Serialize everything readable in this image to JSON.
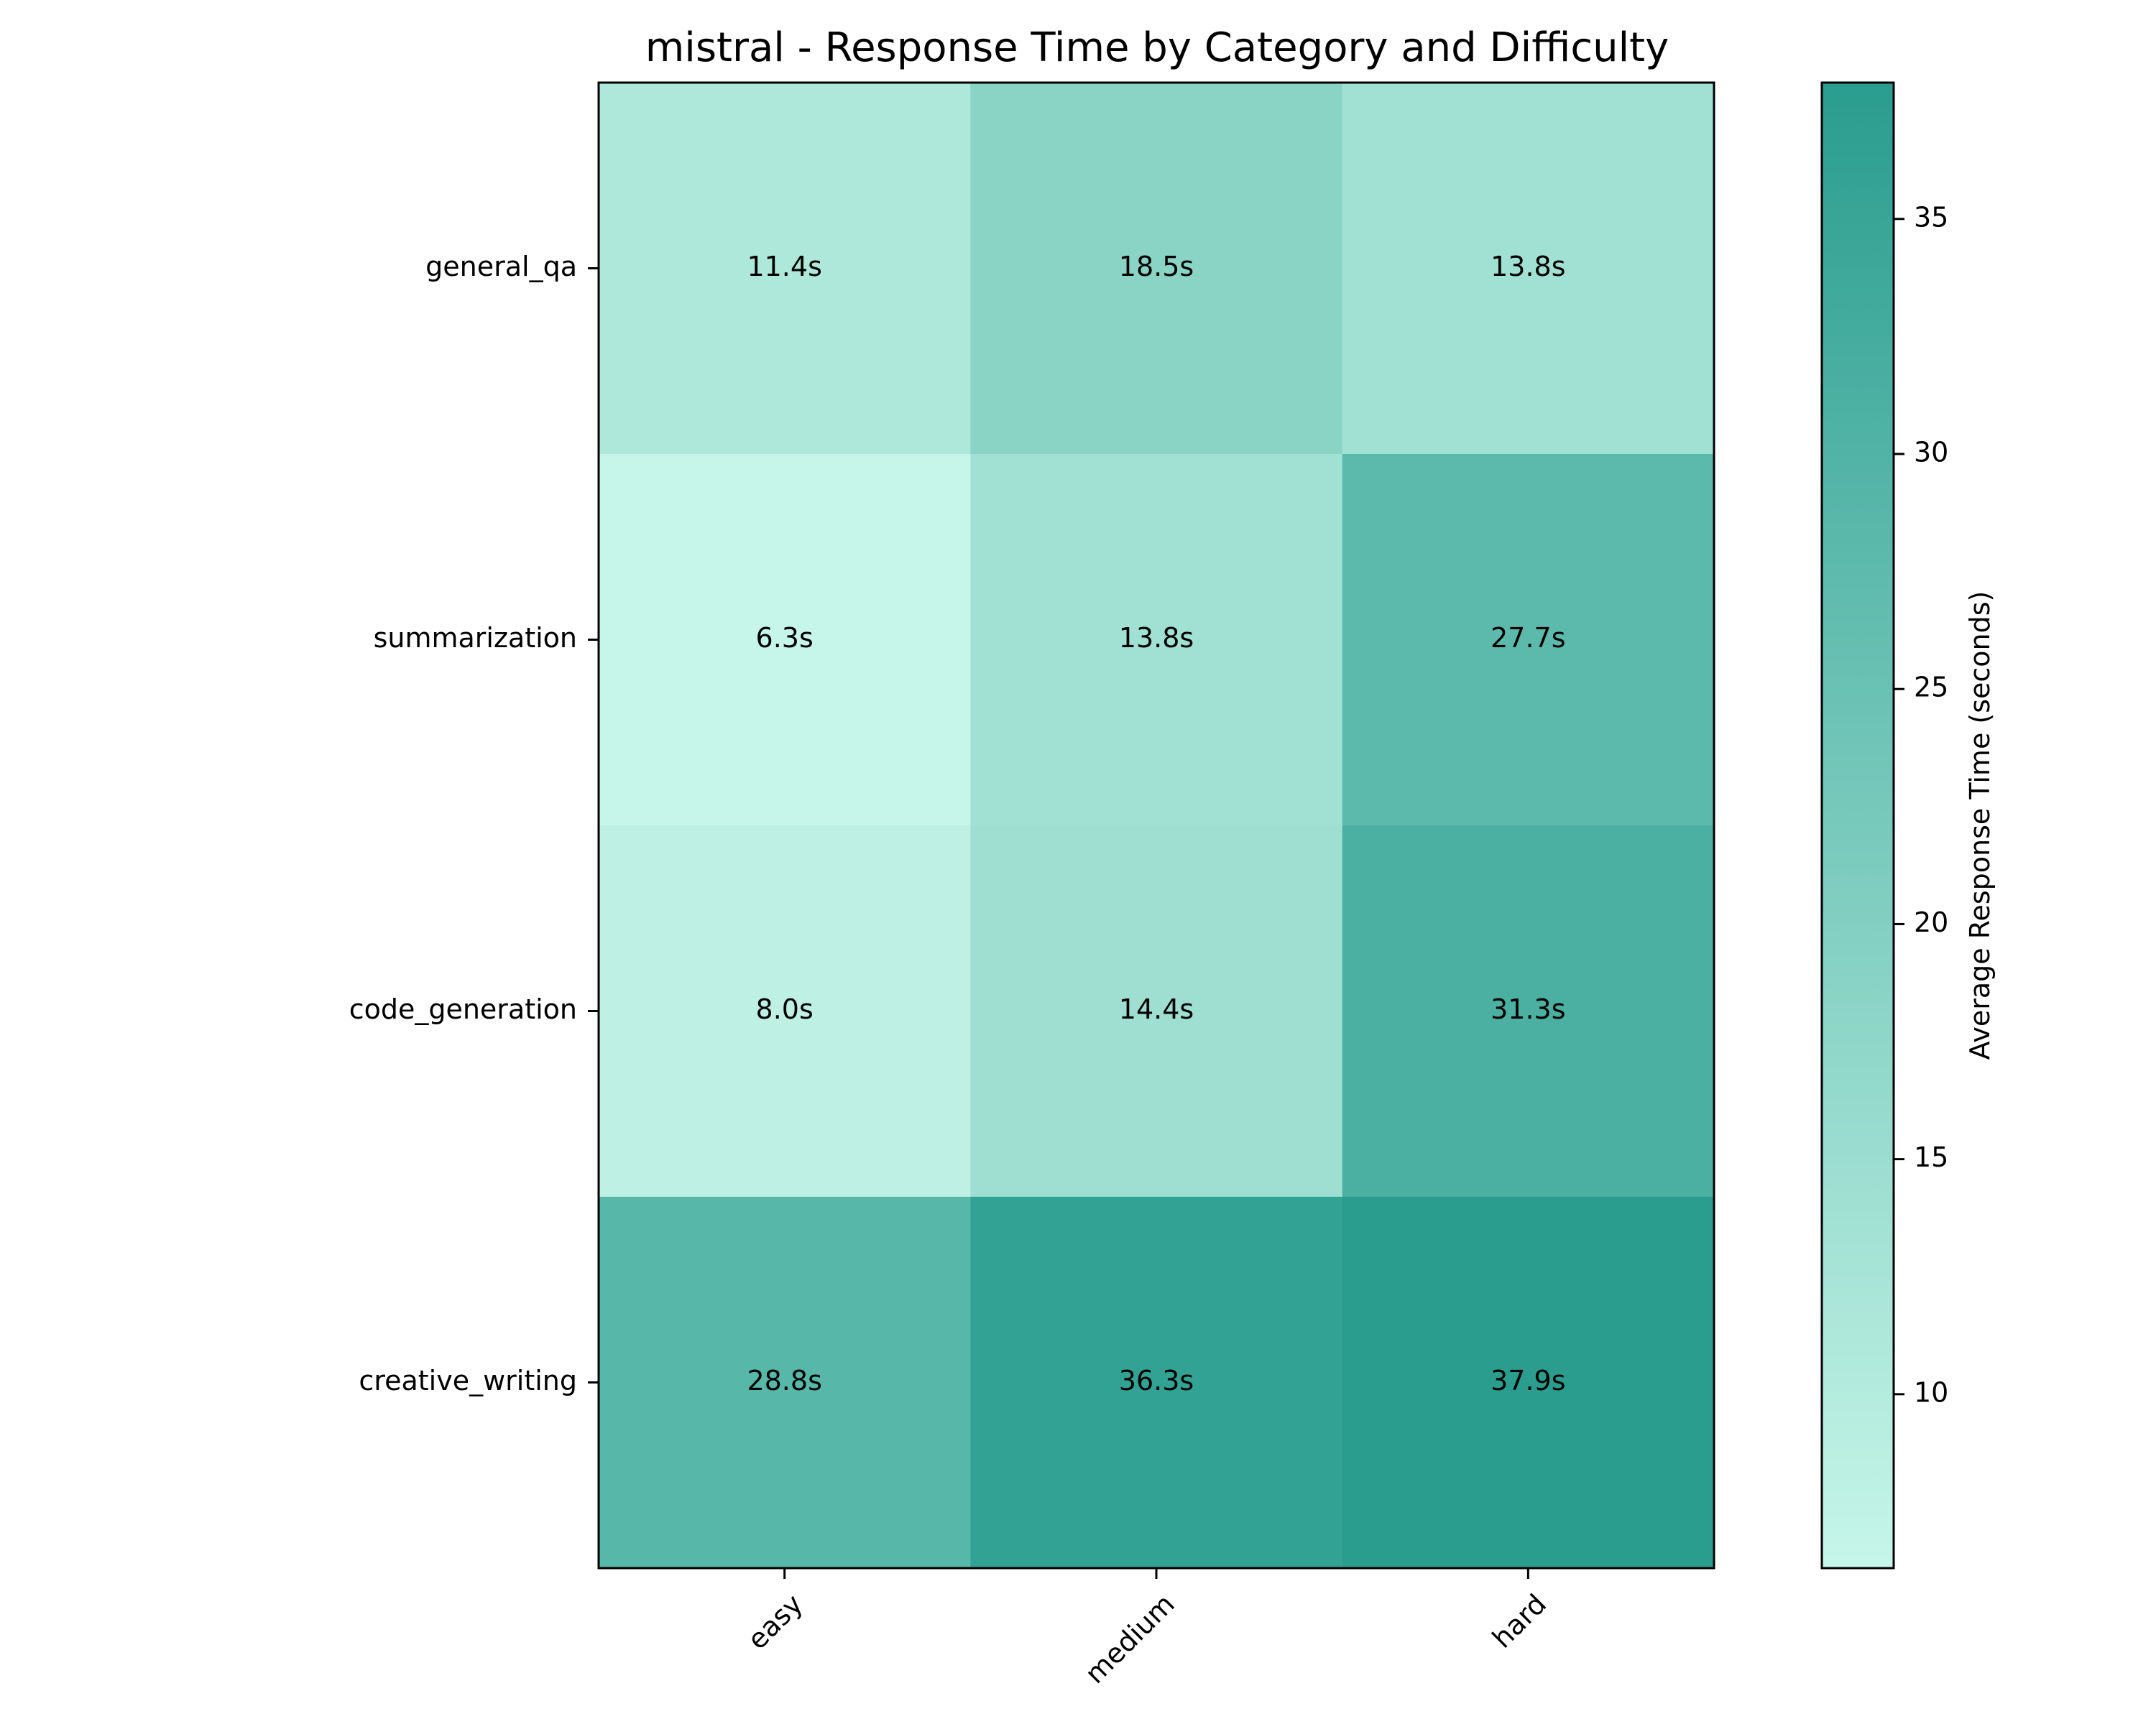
{
  "chart_data": {
    "type": "heatmap",
    "title": "mistral - Response Time by Category and Difficulty",
    "x_categories": [
      "easy",
      "medium",
      "hard"
    ],
    "y_categories": [
      "general_qa",
      "summarization",
      "code_generation",
      "creative_writing"
    ],
    "values": [
      [
        11.4,
        18.5,
        13.8
      ],
      [
        6.3,
        13.8,
        27.7
      ],
      [
        8.0,
        14.4,
        31.3
      ],
      [
        28.8,
        36.3,
        37.9
      ]
    ],
    "cell_labels": [
      [
        "11.4s",
        "18.5s",
        "13.8s"
      ],
      [
        "6.3s",
        "13.8s",
        "27.7s"
      ],
      [
        "8.0s",
        "14.4s",
        "31.3s"
      ],
      [
        "28.8s",
        "36.3s",
        "37.9s"
      ]
    ],
    "colorbar": {
      "label": "Average Response Time (seconds)",
      "ticks": [
        "10",
        "15",
        "20",
        "25",
        "30",
        "35"
      ],
      "range": [
        6.3,
        37.9
      ],
      "color_low": "#c6f6e9",
      "color_high": "#2a9d8f"
    },
    "legend": "colorbar-right",
    "grid": false
  }
}
